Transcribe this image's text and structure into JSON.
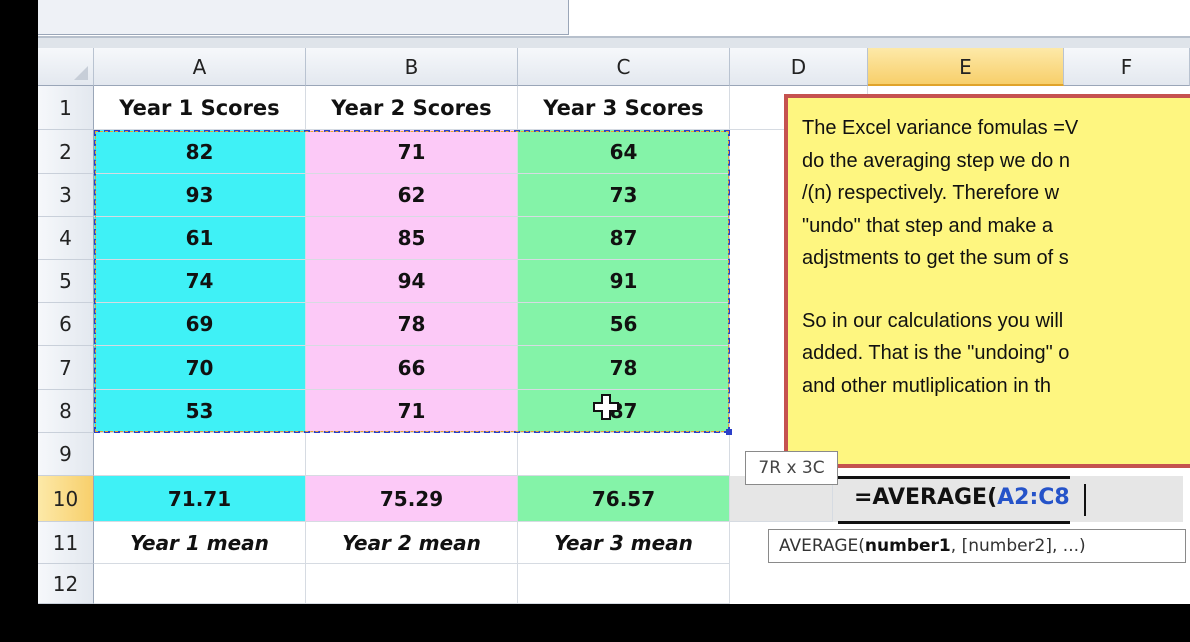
{
  "columns": [
    "A",
    "B",
    "C",
    "D",
    "E",
    "F"
  ],
  "rows": [
    "1",
    "2",
    "3",
    "4",
    "5",
    "6",
    "7",
    "8",
    "9",
    "10",
    "11",
    "12"
  ],
  "active_column": "E",
  "active_row": "10",
  "headers": {
    "a1": "Year 1 Scores",
    "b1": "Year 2 Scores",
    "c1": "Year 3 Scores"
  },
  "data": {
    "year1": [
      "82",
      "93",
      "61",
      "74",
      "69",
      "70",
      "53"
    ],
    "year2": [
      "71",
      "62",
      "85",
      "94",
      "78",
      "66",
      "71"
    ],
    "year3": [
      "64",
      "73",
      "87",
      "91",
      "56",
      "78",
      "87"
    ]
  },
  "means": {
    "a10": "71.71",
    "b10": "75.29",
    "c10": "76.57"
  },
  "mean_labels": {
    "a11": "Year 1 mean",
    "b11": "Year 2 mean",
    "c11": "Year 3 mean"
  },
  "textbox_lines": [
    "The Excel variance fomulas =V",
    "do the averaging step we do n",
    "/(n) respectively.  Therefore w",
    "\"undo\" that step  and make a",
    "adjstments to get the sum of s",
    "So in our calculations you will",
    "added. That is the \"undoing\" o",
    "and other mutliplication in th"
  ],
  "selection_size_tip": "7R x 3C",
  "formula": {
    "prefix": "=AVERAGE(",
    "ref": "A2:C8"
  },
  "function_hint": {
    "name": "AVERAGE(",
    "arg1": "number1",
    "rest": ", [number2], ...)"
  },
  "colors": {
    "year1": "#3ff1f6",
    "year2": "#fcc9f7",
    "year3": "#84f3a8",
    "textbox_bg": "#fef680",
    "textbox_border": "#c5524f"
  }
}
